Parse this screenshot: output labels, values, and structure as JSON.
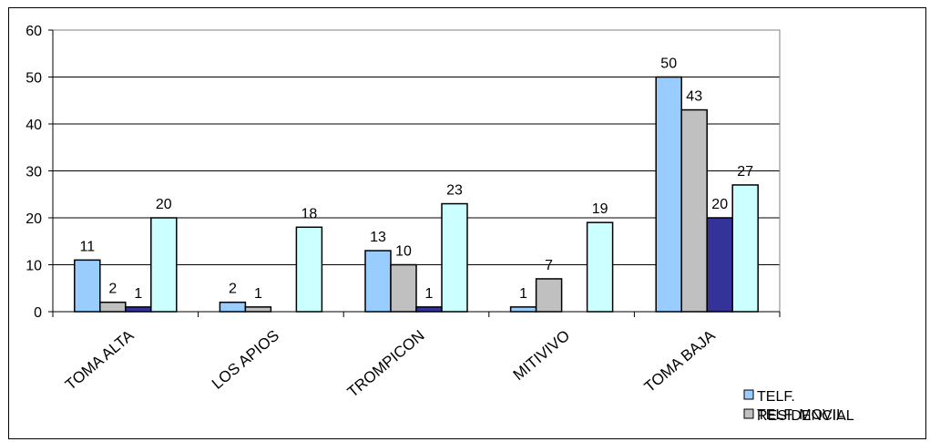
{
  "chart_data": {
    "type": "bar",
    "title": "",
    "xlabel": "",
    "ylabel": "",
    "ylim": [
      0,
      60
    ],
    "yticks": [
      0,
      10,
      20,
      30,
      40,
      50,
      60
    ],
    "grid": true,
    "legend_position": "bottom-right",
    "categories": [
      "TOMA ALTA",
      "LOS APIOS",
      "TROMPICON",
      "MITIVIVO",
      "TOMA BAJA"
    ],
    "series": [
      {
        "name": "TELF. RESIDENCIAL",
        "color": "#99ccff",
        "values": [
          11,
          2,
          13,
          1,
          50
        ]
      },
      {
        "name": "TELF. MOVIL",
        "color": "#c0c0c0",
        "values": [
          2,
          1,
          10,
          7,
          43
        ]
      },
      {
        "name": "",
        "color": "#333399",
        "values": [
          1,
          null,
          1,
          null,
          20
        ]
      },
      {
        "name": "",
        "color": "#ccffff",
        "values": [
          20,
          18,
          23,
          19,
          27
        ]
      }
    ]
  }
}
